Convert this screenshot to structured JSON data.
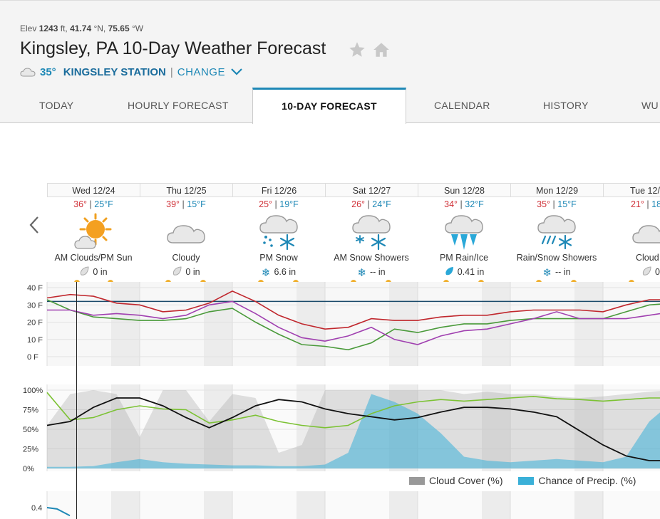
{
  "header": {
    "elev_label": "Elev",
    "elev_value": "1243",
    "elev_unit": "ft,",
    "lat_value": "41.74",
    "lat_unit": "°N,",
    "lon_value": "75.65",
    "lon_unit": "°W",
    "title": "Kingsley, PA 10-Day Weather Forecast",
    "current_temp": "35°",
    "station_name": "KINGSLEY STATION",
    "separator": "|",
    "change_label": "CHANGE"
  },
  "tabs": [
    {
      "label": "TODAY"
    },
    {
      "label": "HOURLY FORECAST"
    },
    {
      "label": "10-DAY FORECAST",
      "active": true
    },
    {
      "label": "CALENDAR"
    },
    {
      "label": "HISTORY"
    },
    {
      "label": "WU"
    }
  ],
  "days": [
    {
      "date": "Wed 12/24",
      "hi": "36°",
      "lo": "25°F",
      "condition": "AM Clouds/PM Sun",
      "icon": "partly-sunny-icon",
      "precip_icon": "drop-icon",
      "precip": "0 in"
    },
    {
      "date": "Thu 12/25",
      "hi": "39°",
      "lo": "15°F",
      "condition": "Cloudy",
      "icon": "cloud-icon",
      "precip_icon": "drop-icon",
      "precip": "0 in"
    },
    {
      "date": "Fri 12/26",
      "hi": "25°",
      "lo": "19°F",
      "condition": "PM Snow",
      "icon": "snow-icon",
      "precip_icon": "snowflake-icon",
      "precip": "6.6 in"
    },
    {
      "date": "Sat 12/27",
      "hi": "26°",
      "lo": "24°F",
      "condition": "AM Snow Showers",
      "icon": "snow-icon",
      "precip_icon": "snowflake-icon",
      "precip": "-- in"
    },
    {
      "date": "Sun 12/28",
      "hi": "34°",
      "lo": "32°F",
      "condition": "PM Rain/Ice",
      "icon": "ice-icon",
      "precip_icon": "drop-icon",
      "precip": "0.41 in"
    },
    {
      "date": "Mon 12/29",
      "hi": "35°",
      "lo": "15°F",
      "condition": "Rain/Snow Showers",
      "icon": "rain-snow-icon",
      "precip_icon": "snowflake-icon",
      "precip": "-- in"
    },
    {
      "date": "Tue 12/",
      "hi": "21°",
      "lo": "18",
      "condition": "Cloud",
      "icon": "cloud-icon",
      "precip_icon": "drop-icon",
      "precip": "0"
    }
  ],
  "legend": {
    "cloud_cover": "Cloud Cover (%)",
    "precip_chance": "Chance of Precip. (%)"
  },
  "colors": {
    "accent": "#1e88b6",
    "high_temp": "#d0333a",
    "low_temp": "#1e88b6",
    "temperature_line": "#c0272d",
    "feels_like_line": "#a040b0",
    "dew_point_line": "#4a9a3a",
    "freezing_line": "#1a4a6a",
    "cloud_cover": "#aaaaaa",
    "precip_chance": "#3ab0d8",
    "humidity_line": "#7cc234",
    "pressure_line": "#111111"
  },
  "chart_data": [
    {
      "type": "line",
      "y_ticks": [
        "40 F",
        "30 F",
        "20 F",
        "10 F",
        "0 F"
      ],
      "ylim": [
        0,
        40
      ],
      "freezing_line": 32,
      "x": [
        0,
        6,
        12,
        18,
        24,
        30,
        36,
        42,
        48,
        54,
        60,
        66,
        72,
        78,
        84,
        90,
        96,
        102,
        108,
        114,
        120,
        126,
        132,
        138,
        144,
        150,
        156,
        162,
        168,
        174,
        180,
        186,
        192,
        198,
        204,
        210,
        216
      ],
      "series": [
        {
          "role": "temperature",
          "values": [
            34,
            36,
            35,
            31,
            30,
            26,
            27,
            31,
            38,
            32,
            24,
            19,
            16,
            17,
            22,
            21,
            21,
            23,
            24,
            24,
            26,
            27,
            27,
            27,
            26,
            30,
            33,
            33,
            34,
            35,
            34,
            28,
            23,
            20,
            16,
            19,
            21
          ]
        },
        {
          "role": "feels_like",
          "values": [
            27,
            27,
            24,
            25,
            24,
            22,
            24,
            30,
            32,
            25,
            17,
            11,
            9,
            12,
            17,
            10,
            7,
            12,
            15,
            16,
            19,
            22,
            26,
            22,
            22,
            22,
            24,
            26,
            28,
            28,
            27,
            17,
            10,
            7,
            2,
            5,
            7
          ]
        },
        {
          "role": "dew_point",
          "values": [
            33,
            27,
            23,
            22,
            21,
            21,
            22,
            26,
            28,
            20,
            13,
            7,
            6,
            4,
            8,
            16,
            14,
            17,
            19,
            19,
            21,
            22,
            22,
            22,
            22,
            26,
            30,
            31,
            32,
            31,
            28,
            20,
            14,
            13,
            10,
            9,
            9
          ]
        }
      ]
    },
    {
      "type": "area",
      "y_ticks": [
        "100%",
        "75%",
        "50%",
        "25%",
        "0%"
      ],
      "ylim": [
        0,
        100
      ],
      "x": [
        0,
        6,
        12,
        18,
        24,
        30,
        36,
        42,
        48,
        54,
        60,
        66,
        72,
        78,
        84,
        90,
        96,
        102,
        108,
        114,
        120,
        126,
        132,
        138,
        144,
        150,
        156,
        162,
        168,
        174,
        180,
        186,
        192,
        198,
        204,
        210,
        216
      ],
      "series": [
        {
          "role": "cloud_cover",
          "values": [
            55,
            95,
            100,
            95,
            40,
            100,
            100,
            60,
            95,
            90,
            20,
            30,
            100,
            100,
            100,
            100,
            100,
            100,
            95,
            98,
            95,
            95,
            92,
            90,
            92,
            95,
            98,
            100,
            100,
            100,
            98,
            95,
            95,
            92,
            90,
            88,
            85
          ]
        },
        {
          "role": "precip_chance",
          "values": [
            2,
            2,
            3,
            8,
            12,
            8,
            6,
            5,
            4,
            4,
            3,
            3,
            5,
            20,
            95,
            85,
            70,
            45,
            15,
            10,
            8,
            10,
            12,
            10,
            8,
            15,
            60,
            85,
            75,
            65,
            45,
            30,
            15,
            8,
            5,
            5,
            3
          ]
        },
        {
          "role": "humidity",
          "values": [
            97,
            62,
            65,
            75,
            80,
            76,
            75,
            58,
            62,
            68,
            60,
            55,
            52,
            55,
            70,
            80,
            85,
            88,
            86,
            88,
            90,
            92,
            89,
            88,
            86,
            88,
            90,
            90,
            88,
            85,
            80,
            76,
            72,
            70,
            68,
            65,
            62
          ]
        },
        {
          "role": "pressure",
          "values": [
            55,
            60,
            78,
            90,
            90,
            80,
            65,
            52,
            65,
            80,
            88,
            85,
            76,
            70,
            66,
            62,
            65,
            72,
            78,
            78,
            76,
            72,
            66,
            48,
            30,
            16,
            10,
            10,
            14,
            20,
            28,
            35,
            38,
            40,
            40,
            42,
            44
          ]
        }
      ]
    },
    {
      "type": "line",
      "y_ticks": [
        "0.4"
      ],
      "series": [
        {
          "role": "precip_amount",
          "values": [
            0.4,
            0.35,
            0.1
          ]
        }
      ]
    }
  ]
}
